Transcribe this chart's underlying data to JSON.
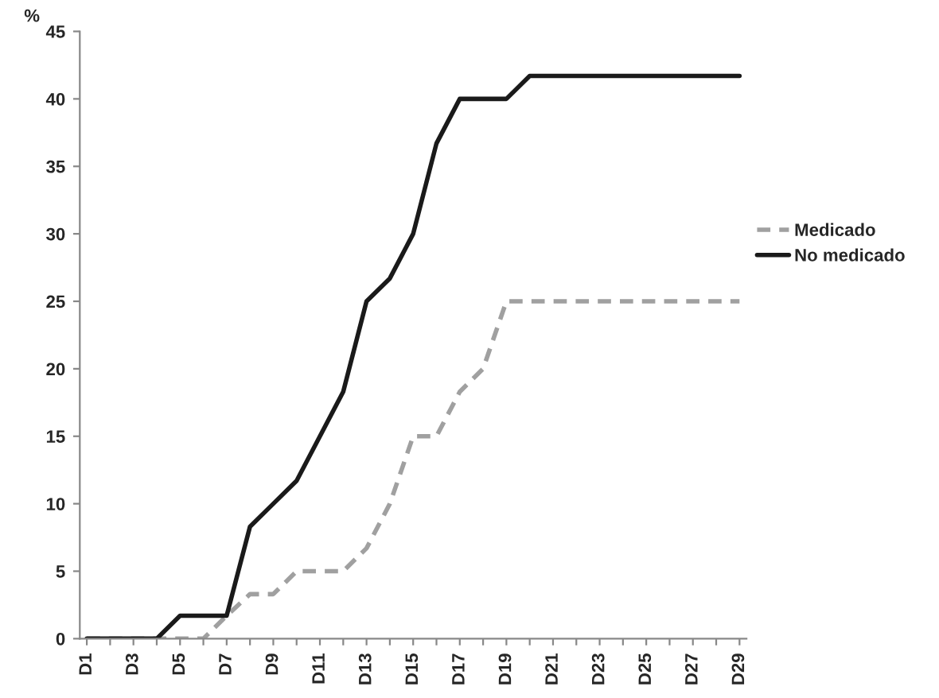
{
  "chart_data": {
    "type": "line",
    "ylabel": "%",
    "categories": [
      "D1",
      null,
      "D3",
      null,
      "D5",
      null,
      "D7",
      null,
      "D9",
      null,
      "D11",
      null,
      "D13",
      null,
      "D15",
      null,
      "D17",
      null,
      "D19",
      null,
      "D21",
      null,
      "D23",
      null,
      "D25",
      null,
      "D27",
      null,
      "D29"
    ],
    "series": [
      {
        "name": "Medicado",
        "color": "#a0a0a0",
        "line_style": "dashed",
        "values": [
          0,
          0,
          0,
          0,
          0,
          0,
          1.7,
          3.3,
          3.3,
          5,
          5,
          5,
          6.7,
          10,
          15,
          15,
          18.3,
          20,
          25,
          25,
          25,
          25,
          25,
          25,
          25,
          25,
          25,
          25,
          25
        ]
      },
      {
        "name": "No medicado",
        "color": "#1a1a1a",
        "line_style": "solid",
        "values": [
          0,
          0,
          0,
          0,
          1.7,
          1.7,
          1.7,
          8.3,
          10,
          11.7,
          15,
          18.3,
          25,
          26.7,
          30,
          36.7,
          40,
          40,
          40,
          41.7,
          41.7,
          41.7,
          41.7,
          41.7,
          41.7,
          41.7,
          41.7,
          41.7,
          41.7
        ]
      }
    ],
    "ylim": [
      0,
      45
    ],
    "yticks": [
      0,
      5,
      10,
      15,
      20,
      25,
      30,
      35,
      40,
      45
    ],
    "grid": false,
    "legend": "right",
    "marker": "none"
  }
}
